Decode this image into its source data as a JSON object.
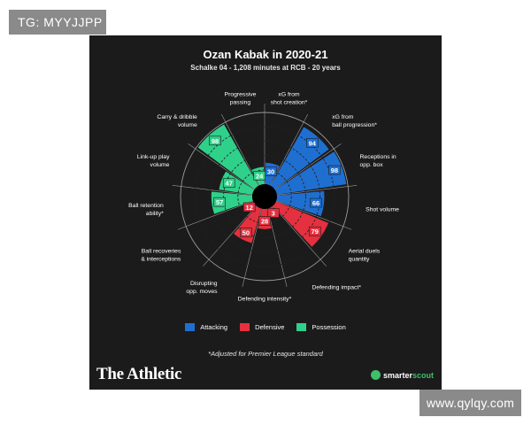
{
  "watermarks": {
    "top_left": "TG: MYYJJPP",
    "bottom_right": "www.qylqy.com"
  },
  "header": {
    "title": "Ozan Kabak in 2020-21",
    "subtitle": "Schalke 04 - 1,208 minutes at RCB - 20 years"
  },
  "colors": {
    "Attacking": "#1f6fd1",
    "Defensive": "#e5303f",
    "Possession": "#2fd18a",
    "background": "#1b1b1b"
  },
  "legend": [
    {
      "label": "Attacking",
      "group": "Attacking"
    },
    {
      "label": "Defensive",
      "group": "Defensive"
    },
    {
      "label": "Possession",
      "group": "Possession"
    }
  ],
  "footnote": "*Adjusted for Premier League standard",
  "brand": "The Athletic",
  "scout": {
    "prefix": "smarter",
    "suffix": "scout"
  },
  "chart_data": {
    "type": "polar-bar",
    "title": "Ozan Kabak in 2020-21",
    "subtitle": "Schalke 04 - 1,208 minutes at RCB - 20 years",
    "rlim": [
      0,
      100
    ],
    "metrics": [
      {
        "label": [
          "xG from",
          "shot creation*"
        ],
        "value": 30,
        "group": "Attacking"
      },
      {
        "label": [
          "xG from",
          "ball progression*"
        ],
        "value": 94,
        "group": "Attacking"
      },
      {
        "label": [
          "Receptions in",
          "opp. box"
        ],
        "value": 98,
        "group": "Attacking"
      },
      {
        "label": [
          "Shot volume"
        ],
        "value": 66,
        "group": "Attacking"
      },
      {
        "label": [
          "Aerial duels",
          "quantity"
        ],
        "value": 79,
        "group": "Defensive"
      },
      {
        "label": [
          "Defending impact*"
        ],
        "value": 3,
        "group": "Defensive"
      },
      {
        "label": [
          "Defending intensity*"
        ],
        "value": 28,
        "group": "Defensive"
      },
      {
        "label": [
          "Disrupting",
          "opp. moves"
        ],
        "value": 50,
        "group": "Defensive"
      },
      {
        "label": [
          "Ball recoveries",
          "& interceptions"
        ],
        "value": 12,
        "group": "Defensive"
      },
      {
        "label": [
          "Ball retention",
          "ability*"
        ],
        "value": 57,
        "group": "Possession"
      },
      {
        "label": [
          "Link-up play",
          "volume"
        ],
        "value": 47,
        "group": "Possession"
      },
      {
        "label": [
          "Carry & dribble",
          "volume"
        ],
        "value": 98,
        "group": "Possession"
      },
      {
        "label": [
          "Progressive",
          "passing"
        ],
        "value": 24,
        "group": "Possession"
      }
    ],
    "legend": [
      "Attacking",
      "Defensive",
      "Possession"
    ],
    "footnote": "*Adjusted for Premier League standard"
  }
}
